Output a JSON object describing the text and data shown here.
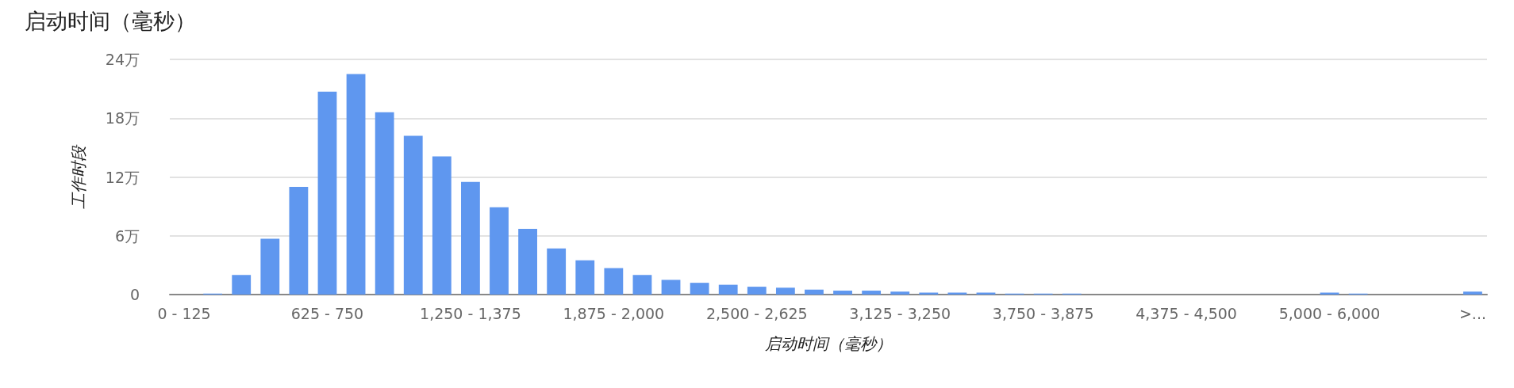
{
  "chart_data": {
    "type": "bar",
    "title": "启动时间（毫秒）",
    "xlabel": "启动时间（毫秒）",
    "ylabel": "工作时段",
    "categories": [
      "0 - 125",
      null,
      null,
      null,
      null,
      "625 - 750",
      null,
      null,
      null,
      null,
      "1,250 - 1,375",
      null,
      null,
      null,
      null,
      "1,875 - 2,000",
      null,
      null,
      null,
      null,
      "2,500 - 2,625",
      null,
      null,
      null,
      null,
      "3,125 - 3,250",
      null,
      null,
      null,
      null,
      "3,750 - 3,875",
      null,
      null,
      null,
      null,
      "4,375 - 4,500",
      null,
      null,
      null,
      null,
      "5,000 - 6,000",
      null,
      null,
      null,
      null,
      ">..."
    ],
    "values": [
      0,
      0.1,
      2,
      5.7,
      11,
      20.7,
      22.5,
      18.6,
      16.2,
      14.1,
      11.5,
      8.9,
      6.7,
      4.7,
      3.5,
      2.7,
      2,
      1.5,
      1.2,
      1,
      0.8,
      0.7,
      0.5,
      0.4,
      0.4,
      0.3,
      0.2,
      0.2,
      0.2,
      0.1,
      0.1,
      0.1,
      0,
      0,
      0,
      0,
      0,
      0,
      0,
      0,
      0.2,
      0.1,
      0,
      0,
      0,
      0.3
    ],
    "color": "#5f97ef",
    "ylim": [
      0,
      24
    ],
    "yticks": [
      0,
      {
        "value": 6,
        "label": "6万"
      },
      {
        "value": 12,
        "label": "12万"
      },
      {
        "value": 18,
        "label": "18万"
      },
      {
        "value": 24,
        "label": "24万"
      }
    ],
    "grid": "y"
  }
}
